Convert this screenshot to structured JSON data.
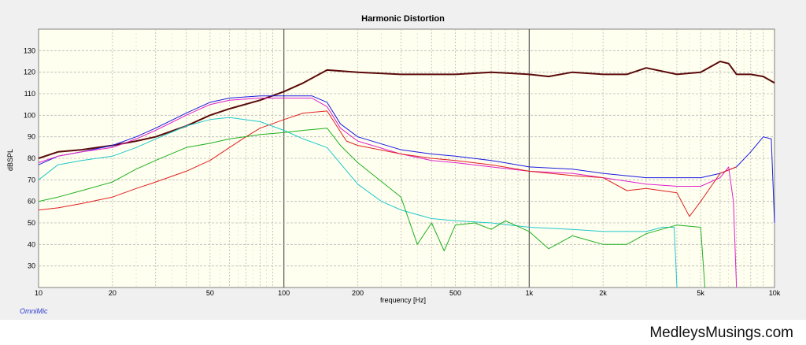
{
  "app_name": "OmniMic",
  "watermark": "MedleysMusings.com",
  "chart_data": {
    "type": "line",
    "title": "Harmonic Distortion",
    "xlabel": "frequency [Hz]",
    "ylabel": "dBSPL",
    "xscale": "log",
    "xlim": [
      10,
      10000
    ],
    "ylim": [
      20,
      140
    ],
    "grid": true,
    "legend": "none",
    "x_ticks": [
      {
        "v": 10,
        "label": "10"
      },
      {
        "v": 20,
        "label": "20"
      },
      {
        "v": 50,
        "label": "50"
      },
      {
        "v": 100,
        "label": "100"
      },
      {
        "v": 200,
        "label": "200"
      },
      {
        "v": 500,
        "label": "500"
      },
      {
        "v": 1000,
        "label": "1k"
      },
      {
        "v": 2000,
        "label": "2k"
      },
      {
        "v": 5000,
        "label": "5k"
      },
      {
        "v": 10000,
        "label": "10k"
      }
    ],
    "y_ticks": [
      30,
      40,
      50,
      60,
      70,
      80,
      90,
      100,
      110,
      120,
      130
    ],
    "series": [
      {
        "color": "#5a0a0a",
        "width": 2,
        "x": [
          10,
          12,
          15,
          20,
          25,
          30,
          40,
          50,
          60,
          80,
          100,
          120,
          150,
          200,
          300,
          500,
          700,
          1000,
          1200,
          1500,
          2000,
          2500,
          3000,
          4000,
          5000,
          6000,
          6500,
          7000,
          8000,
          9000,
          10000
        ],
        "y": [
          80,
          83,
          84,
          86,
          88,
          90,
          95,
          100,
          103,
          107,
          111,
          115,
          121,
          120,
          119,
          119,
          120,
          119,
          118,
          120,
          119,
          119,
          122,
          119,
          120,
          125,
          124,
          119,
          119,
          118,
          115
        ]
      },
      {
        "color": "#1a1ae0",
        "width": 1,
        "x": [
          10,
          12,
          15,
          20,
          25,
          30,
          40,
          50,
          60,
          80,
          100,
          130,
          150,
          170,
          200,
          300,
          400,
          500,
          700,
          1000,
          1500,
          2000,
          3000,
          4000,
          5000,
          6000,
          7000,
          8000,
          9000,
          9700,
          10000
        ],
        "y": [
          77,
          81,
          83,
          86,
          90,
          94,
          101,
          106,
          108,
          109,
          109,
          109,
          106,
          96,
          90,
          84,
          82,
          81,
          79,
          76,
          75,
          73,
          71,
          71,
          71,
          73,
          76,
          83,
          90,
          89,
          50
        ]
      },
      {
        "color": "#e020c8",
        "width": 1,
        "x": [
          10,
          12,
          15,
          20,
          25,
          30,
          40,
          50,
          60,
          80,
          100,
          130,
          150,
          170,
          200,
          300,
          400,
          500,
          700,
          1000,
          1500,
          2000,
          3000,
          4000,
          5000,
          6000,
          6500,
          6800,
          7000
        ],
        "y": [
          78,
          81,
          83,
          85,
          89,
          93,
          100,
          105,
          107,
          108,
          108,
          108,
          104,
          94,
          88,
          82,
          79,
          78,
          76,
          74,
          73,
          71,
          68,
          67,
          67,
          71,
          76,
          60,
          20
        ]
      },
      {
        "color": "#e02020",
        "width": 1,
        "x": [
          10,
          12,
          15,
          20,
          25,
          30,
          40,
          50,
          60,
          70,
          80,
          100,
          120,
          150,
          160,
          180,
          200,
          300,
          400,
          500,
          700,
          1000,
          1500,
          2000,
          2500,
          3000,
          4000,
          4500,
          5000,
          6000,
          7000
        ],
        "y": [
          56,
          57,
          59,
          62,
          66,
          69,
          74,
          79,
          85,
          90,
          94,
          98,
          101,
          102,
          97,
          88,
          86,
          82,
          80,
          79,
          77,
          74,
          72,
          71,
          65,
          66,
          64,
          53,
          60,
          73,
          76
        ]
      },
      {
        "color": "#20c8c8",
        "width": 1,
        "x": [
          10,
          12,
          15,
          20,
          25,
          30,
          40,
          50,
          60,
          80,
          100,
          120,
          150,
          200,
          250,
          300,
          400,
          500,
          700,
          1000,
          1500,
          2000,
          3000,
          3500,
          3900,
          4000
        ],
        "y": [
          70,
          77,
          79,
          81,
          85,
          89,
          95,
          98,
          99,
          97,
          93,
          89,
          85,
          68,
          60,
          56,
          52,
          51,
          50,
          48,
          47,
          46,
          46,
          48,
          48,
          20
        ]
      },
      {
        "color": "#20b020",
        "width": 1,
        "x": [
          10,
          12,
          15,
          20,
          25,
          30,
          40,
          50,
          60,
          80,
          100,
          120,
          150,
          170,
          200,
          300,
          350,
          400,
          450,
          500,
          600,
          700,
          800,
          1000,
          1200,
          1500,
          2000,
          2500,
          3000,
          4000,
          5000,
          5200
        ],
        "y": [
          60,
          62,
          65,
          69,
          75,
          79,
          85,
          87,
          89,
          91,
          92,
          93,
          94,
          86,
          78,
          62,
          40,
          50,
          37,
          49,
          50,
          47,
          51,
          46,
          38,
          44,
          40,
          40,
          45,
          49,
          48,
          20
        ]
      }
    ]
  }
}
